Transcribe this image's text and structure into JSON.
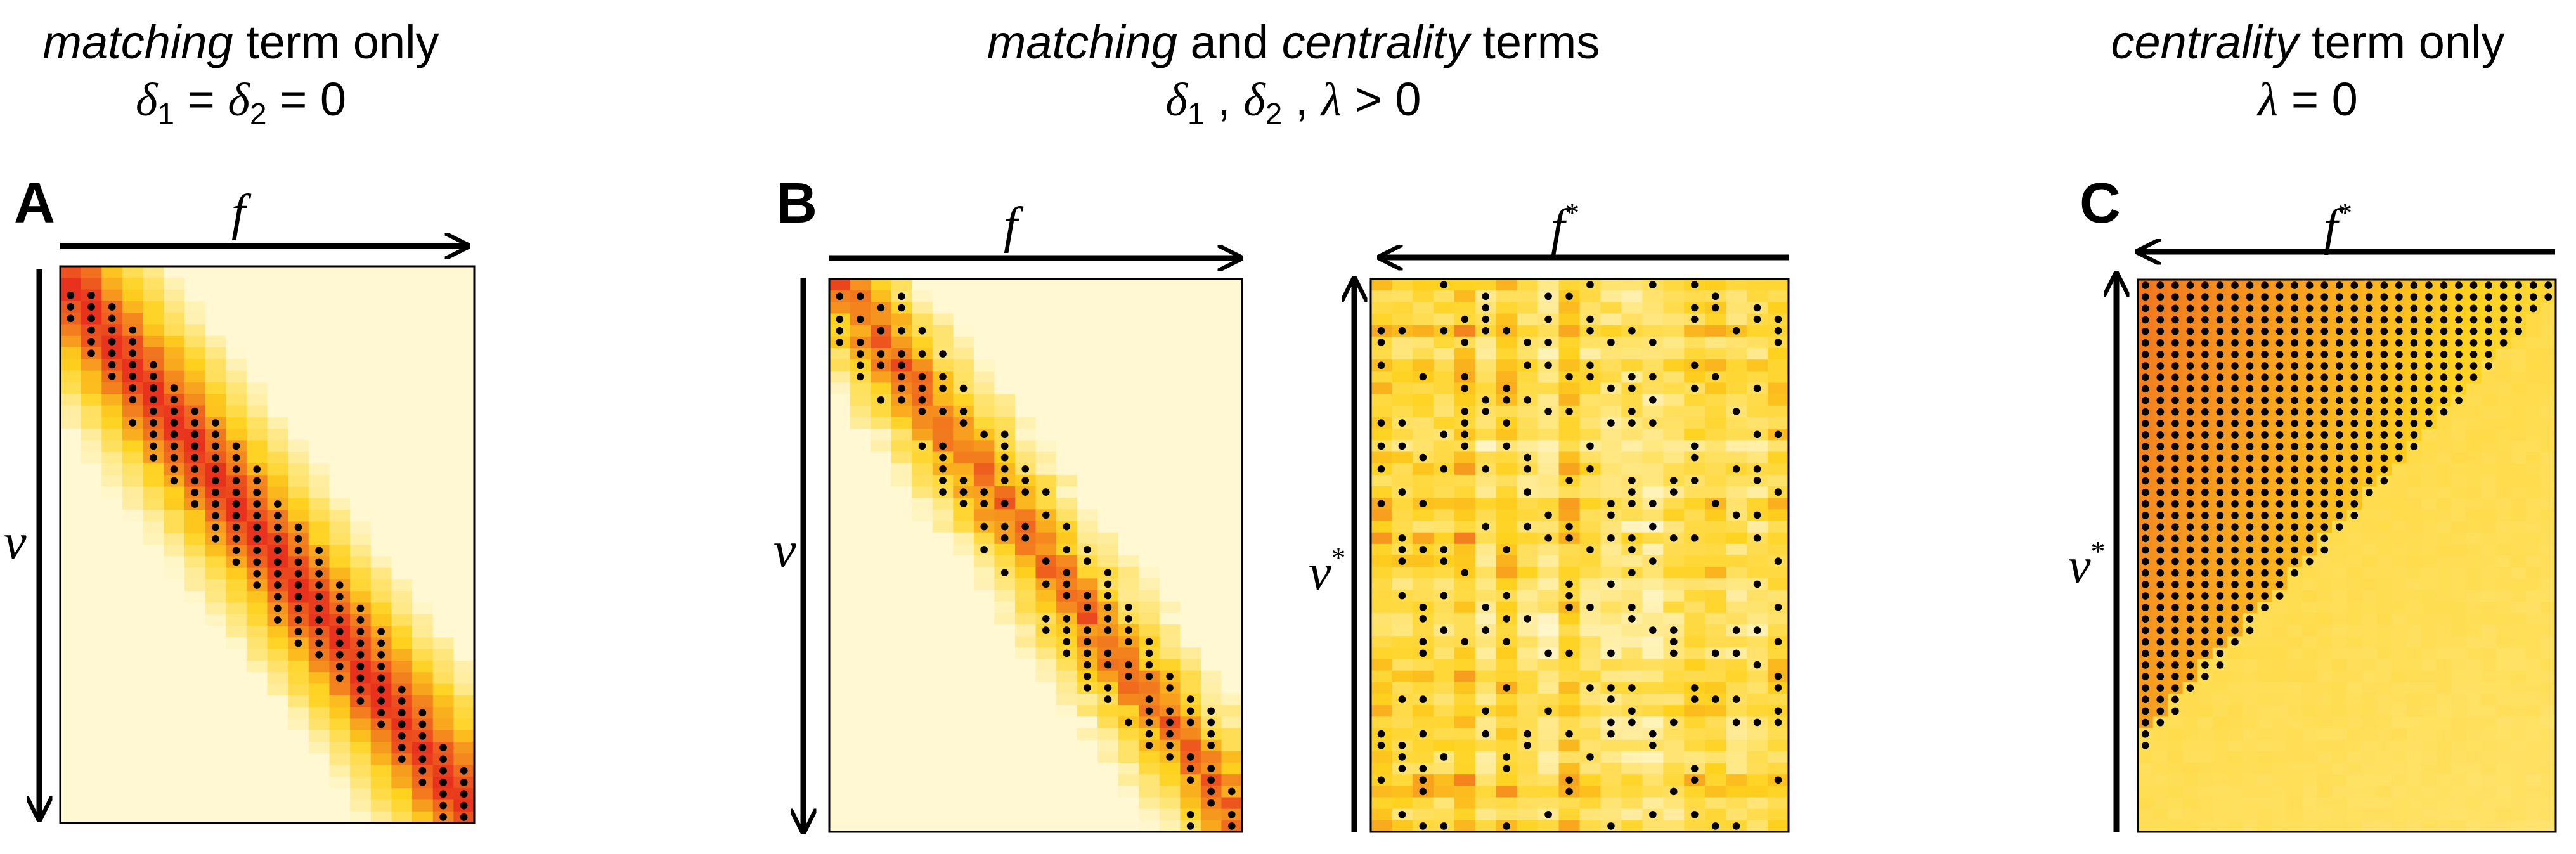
{
  "titles": {
    "a": {
      "italic": "matching",
      "rest": " term only",
      "eq_d1": "δ",
      "eq_sub1": "1",
      "eq_mid": " = ",
      "eq_d2": "δ",
      "eq_sub2": "2",
      "eq_end": " = 0"
    },
    "b": {
      "italic1": "matching",
      "mid": " and ",
      "italic2": "centrality",
      "rest": " terms",
      "eq_d1": "δ",
      "eq_sub1": "1",
      "eq_sep": " , ",
      "eq_d2": "δ",
      "eq_sub2": "2",
      "eq_sep2": " , ",
      "eq_lambda": "λ",
      "eq_end": " > 0"
    },
    "c": {
      "italic": "centrality",
      "rest": " term only",
      "eq_lambda": "λ",
      "eq_end": " = 0"
    }
  },
  "panel_labels": {
    "a": "A",
    "b": "B",
    "c": "C"
  },
  "axis_labels": {
    "a_x": "f",
    "a_y": "v",
    "b1_x": "f",
    "b1_y": "v",
    "b2_x": "f",
    "b2_x_sup": "*",
    "b2_y": "v",
    "b2_y_sup": "*",
    "c_x": "f",
    "c_x_sup": "*",
    "c_y": "v",
    "c_y_sup": "*"
  },
  "colors": {
    "low": "#fff8d2",
    "mid": "#ffd21e",
    "high": "#e8321e",
    "dot": "#000000"
  }
}
